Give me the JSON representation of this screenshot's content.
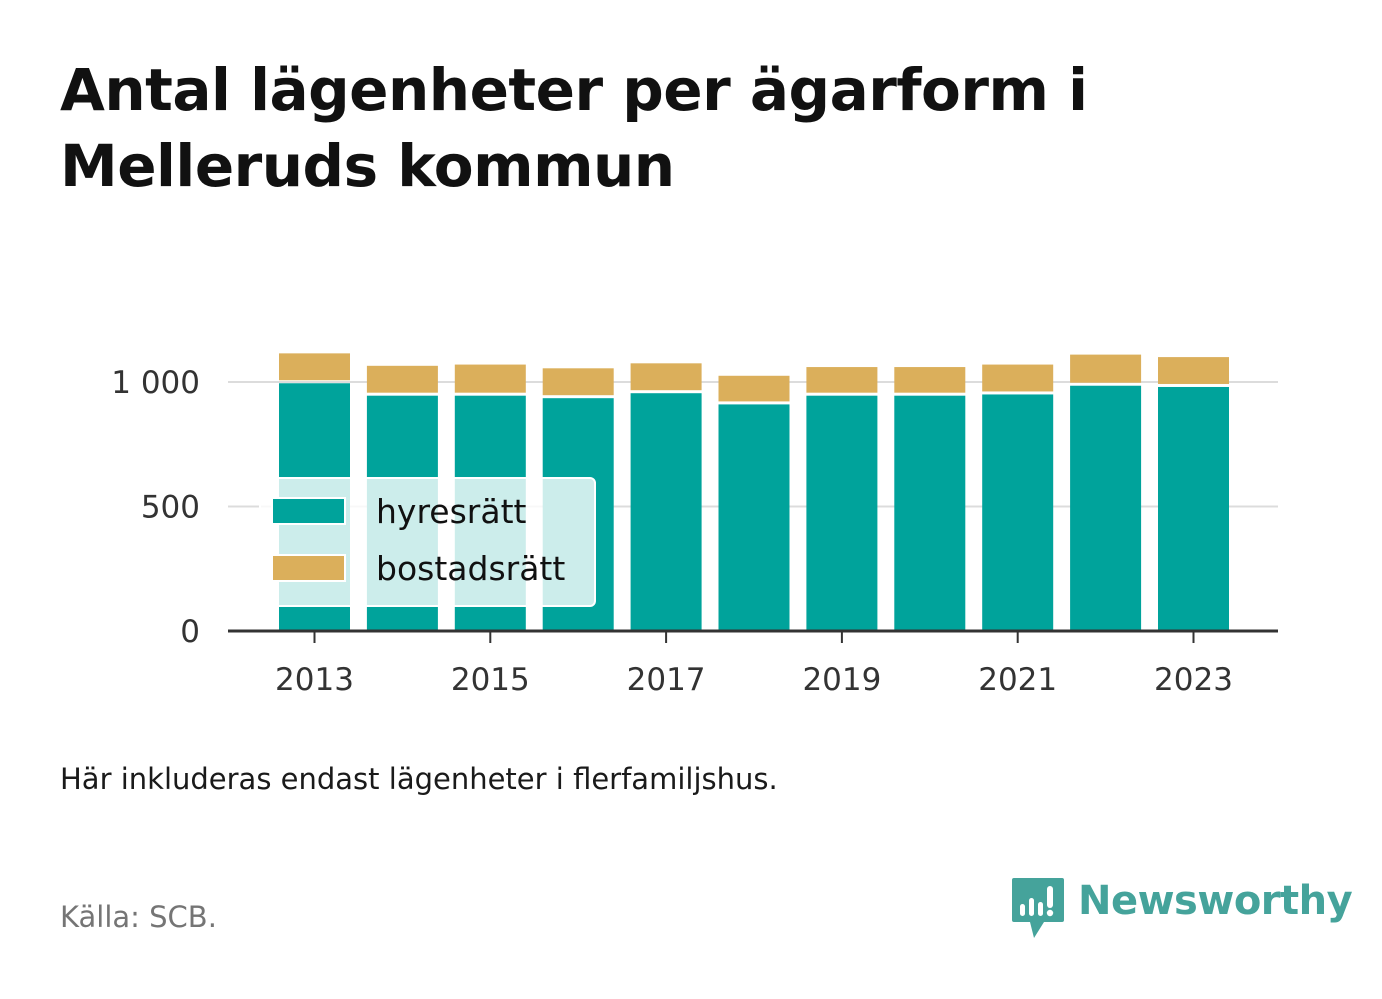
{
  "title": "Antal lägenheter per ägarform i Melleruds kommun",
  "note": "Här inkluderas endast lägenheter i flerfamiljshus.",
  "source": "Källa: SCB.",
  "brand": {
    "name": "Newsworthy",
    "icon": "newsworthy-logo-icon",
    "color": "#45a39b"
  },
  "chart_data": {
    "type": "bar",
    "stacked": true,
    "categories": [
      "2013",
      "2014",
      "2015",
      "2016",
      "2017",
      "2018",
      "2019",
      "2020",
      "2021",
      "2022",
      "2023"
    ],
    "series": [
      {
        "name": "hyresrätt",
        "color": "#00a39b",
        "values": [
          995,
          945,
          945,
          935,
          955,
          910,
          945,
          945,
          950,
          985,
          980
        ]
      },
      {
        "name": "bostadsrätt",
        "color": "#dbaf5b",
        "values": [
          120,
          120,
          125,
          120,
          120,
          115,
          115,
          115,
          120,
          125,
          120
        ]
      }
    ],
    "xticks": [
      "2013",
      "2015",
      "2017",
      "2019",
      "2021",
      "2023"
    ],
    "yticks": [
      0,
      500,
      1000
    ],
    "ytick_labels": [
      "0",
      "500",
      "1 000"
    ],
    "ylim": [
      0,
      1200
    ],
    "grid": true,
    "legend": {
      "position": "inside-lower-left"
    }
  }
}
